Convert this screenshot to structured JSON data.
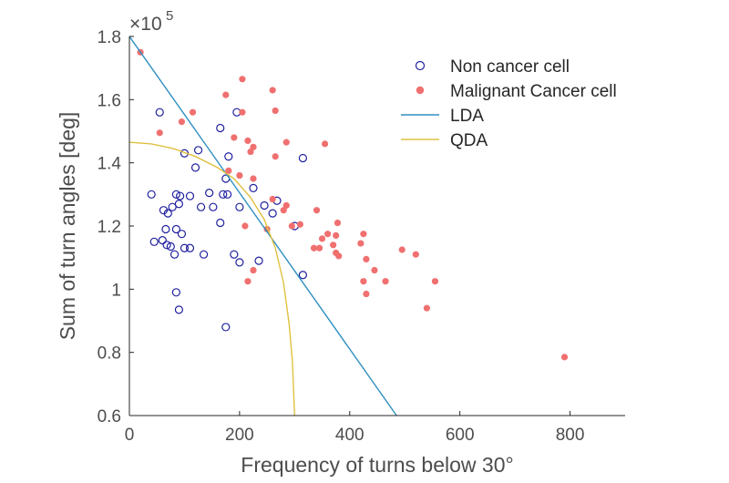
{
  "chart_data": {
    "type": "scatter",
    "xlabel": "Frequency of turns below 30°",
    "ylabel": "Sum of turn angles [deg]",
    "y_exponent": {
      "base": "×10",
      "power": "5"
    },
    "xlim": [
      0,
      900
    ],
    "ylim": [
      0.6,
      1.8
    ],
    "x_ticks": [
      0,
      200,
      400,
      600,
      800
    ],
    "x_tick_labels": [
      "0",
      "200",
      "400",
      "600",
      "800"
    ],
    "y_ticks": [
      0.6,
      0.8,
      1.0,
      1.2,
      1.4,
      1.6,
      1.8
    ],
    "y_tick_labels": [
      "0.6",
      "0.8",
      "1",
      "1.2",
      "1.4",
      "1.6",
      "1.8"
    ],
    "grid": false,
    "legend_position": "top-right",
    "colors": {
      "non_cancer": "#1f1f9e",
      "cancer": "#f07070",
      "lda": "#2f8fc0",
      "qda": "#e0c040",
      "axis": "#262626"
    },
    "series": [
      {
        "name": "Non cancer cell",
        "marker": "open-circle",
        "points": [
          [
            55,
            1.56
          ],
          [
            195,
            1.56
          ],
          [
            165,
            1.51
          ],
          [
            125,
            1.44
          ],
          [
            100,
            1.43
          ],
          [
            180,
            1.42
          ],
          [
            315,
            1.415
          ],
          [
            120,
            1.385
          ],
          [
            175,
            1.35
          ],
          [
            225,
            1.32
          ],
          [
            40,
            1.3
          ],
          [
            85,
            1.3
          ],
          [
            92,
            1.295
          ],
          [
            110,
            1.295
          ],
          [
            145,
            1.305
          ],
          [
            170,
            1.3
          ],
          [
            178,
            1.3
          ],
          [
            268,
            1.28
          ],
          [
            62,
            1.25
          ],
          [
            70,
            1.24
          ],
          [
            78,
            1.26
          ],
          [
            90,
            1.27
          ],
          [
            130,
            1.26
          ],
          [
            152,
            1.26
          ],
          [
            200,
            1.26
          ],
          [
            245,
            1.265
          ],
          [
            260,
            1.24
          ],
          [
            165,
            1.21
          ],
          [
            66,
            1.19
          ],
          [
            85,
            1.19
          ],
          [
            95,
            1.175
          ],
          [
            45,
            1.15
          ],
          [
            60,
            1.155
          ],
          [
            68,
            1.14
          ],
          [
            75,
            1.135
          ],
          [
            82,
            1.11
          ],
          [
            100,
            1.13
          ],
          [
            110,
            1.13
          ],
          [
            135,
            1.11
          ],
          [
            190,
            1.11
          ],
          [
            200,
            1.085
          ],
          [
            235,
            1.09
          ],
          [
            300,
            1.2
          ],
          [
            315,
            1.045
          ],
          [
            85,
            0.99
          ],
          [
            90,
            0.935
          ],
          [
            175,
            0.88
          ]
        ]
      },
      {
        "name": "Malignant Cancer cell",
        "marker": "filled-circle",
        "points": [
          [
            20,
            1.75
          ],
          [
            205,
            1.665
          ],
          [
            175,
            1.615
          ],
          [
            260,
            1.63
          ],
          [
            115,
            1.56
          ],
          [
            205,
            1.56
          ],
          [
            265,
            1.565
          ],
          [
            95,
            1.53
          ],
          [
            55,
            1.495
          ],
          [
            190,
            1.48
          ],
          [
            215,
            1.47
          ],
          [
            225,
            1.45
          ],
          [
            220,
            1.435
          ],
          [
            285,
            1.465
          ],
          [
            355,
            1.46
          ],
          [
            200,
            1.36
          ],
          [
            225,
            1.35
          ],
          [
            265,
            1.42
          ],
          [
            180,
            1.375
          ],
          [
            260,
            1.285
          ],
          [
            285,
            1.265
          ],
          [
            295,
            1.2
          ],
          [
            310,
            1.205
          ],
          [
            340,
            1.25
          ],
          [
            280,
            1.25
          ],
          [
            378,
            1.21
          ],
          [
            345,
            1.13
          ],
          [
            350,
            1.16
          ],
          [
            360,
            1.175
          ],
          [
            370,
            1.14
          ],
          [
            375,
            1.17
          ],
          [
            380,
            1.105
          ],
          [
            420,
            1.145
          ],
          [
            425,
            1.175
          ],
          [
            430,
            1.095
          ],
          [
            335,
            1.13
          ],
          [
            375,
            1.115
          ],
          [
            495,
            1.125
          ],
          [
            520,
            1.11
          ],
          [
            210,
            1.2
          ],
          [
            225,
            1.06
          ],
          [
            215,
            1.025
          ],
          [
            250,
            1.19
          ],
          [
            425,
            1.025
          ],
          [
            445,
            1.06
          ],
          [
            465,
            1.025
          ],
          [
            555,
            1.025
          ],
          [
            430,
            0.985
          ],
          [
            540,
            0.94
          ],
          [
            790,
            0.785
          ]
        ]
      },
      {
        "name": "LDA",
        "marker": "line",
        "points": [
          [
            0,
            1.8
          ],
          [
            485,
            0.6
          ]
        ]
      },
      {
        "name": "QDA",
        "marker": "line",
        "points": [
          [
            0,
            1.465
          ],
          [
            40,
            1.46
          ],
          [
            80,
            1.445
          ],
          [
            120,
            1.42
          ],
          [
            160,
            1.385
          ],
          [
            190,
            1.35
          ],
          [
            220,
            1.29
          ],
          [
            245,
            1.22
          ],
          [
            265,
            1.13
          ],
          [
            280,
            1.02
          ],
          [
            290,
            0.89
          ],
          [
            296,
            0.77
          ],
          [
            300,
            0.6
          ]
        ]
      }
    ]
  }
}
